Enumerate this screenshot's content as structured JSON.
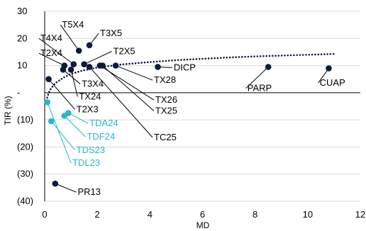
{
  "chart_data": {
    "type": "scatter",
    "title": "",
    "xlabel": "MD",
    "ylabel": "TIR (%)",
    "xlim": [
      0,
      12
    ],
    "ylim": [
      -40,
      30
    ],
    "x_ticks": [
      0,
      2,
      4,
      6,
      8,
      10,
      12
    ],
    "y_ticks": [
      {
        "v": 30,
        "label": "30"
      },
      {
        "v": 20,
        "label": "20"
      },
      {
        "v": 10,
        "label": "10"
      },
      {
        "v": 0,
        "label": "-"
      },
      {
        "v": -10,
        "label": "(10)"
      },
      {
        "v": -20,
        "label": "(20)"
      },
      {
        "v": -30,
        "label": "(30)"
      },
      {
        "v": -40,
        "label": "(40)"
      }
    ],
    "grid": "horizontal",
    "colors": {
      "dark": "#0e1a3d",
      "teal": "#29b6c8",
      "grid": "#d9d9d9",
      "axis": "#000000"
    },
    "series": [
      {
        "color": "#0e1a3d",
        "points": [
          {
            "label": "T5X4",
            "x": 1.3,
            "y": 15.5,
            "lx": 0.6,
            "ly": 24.0
          },
          {
            "label": "T3X5",
            "x": 1.7,
            "y": 17.5,
            "lx": 2.05,
            "ly": 20.8
          },
          {
            "label": "T4X4",
            "x": 1.1,
            "y": 10.5,
            "lx": -0.22,
            "ly": 19.0
          },
          {
            "label": "T2X4",
            "x": 0.75,
            "y": 10.0,
            "lx": -0.22,
            "ly": 13.5
          },
          {
            "label": "T2X5",
            "x": 1.5,
            "y": 10.5,
            "lx": 2.55,
            "ly": 14.2
          },
          {
            "label": "T3X4",
            "x": 0.7,
            "y": 8.5,
            "lx": 1.35,
            "ly": 2.2
          },
          {
            "label": "TX24",
            "x": 1.0,
            "y": 8.5,
            "lx": 1.25,
            "ly": -2.5
          },
          {
            "label": "T2X3",
            "x": 0.15,
            "y": 5.0,
            "lx": 1.15,
            "ly": -7.2
          },
          {
            "label": "TX26",
            "x": 2.1,
            "y": 10.0,
            "lx": 4.15,
            "ly": -3.7
          },
          {
            "label": "TX25",
            "x": 2.2,
            "y": 10.0,
            "lx": 4.15,
            "ly": -7.7
          },
          {
            "label": "TX28",
            "x": 2.7,
            "y": 10.0,
            "lx": 4.1,
            "ly": 3.6
          },
          {
            "label": "DICP",
            "x": 4.3,
            "y": 9.5,
            "lx": 4.85,
            "ly": 8.2
          },
          {
            "label": "TC25",
            "x": 1.7,
            "y": 9.5,
            "lx": 4.1,
            "ly": -17.5
          },
          {
            "label": "PARP",
            "x": 8.5,
            "y": 9.5,
            "lx": 7.65,
            "ly": 0.6
          },
          {
            "label": "CUAP",
            "x": 10.8,
            "y": 9.0,
            "lx": 10.4,
            "ly": 2.6
          },
          {
            "label": "PR13",
            "x": 0.4,
            "y": -33.5,
            "lx": 1.2,
            "ly": -37.7
          }
        ]
      },
      {
        "color": "#29b6c8",
        "points": [
          {
            "label": "TDA24",
            "x": 0.9,
            "y": -7.5,
            "lx": 1.65,
            "ly": -12.3
          },
          {
            "label": "TDF24",
            "x": 0.75,
            "y": -8.5,
            "lx": 1.55,
            "ly": -17.3
          },
          {
            "label": "TDS23",
            "x": 0.25,
            "y": -10.5,
            "lx": 1.15,
            "ly": -22.2
          },
          {
            "label": "TDL23",
            "x": 0.1,
            "y": -3.5,
            "lx": 1.0,
            "ly": -27.0
          }
        ]
      }
    ],
    "trendline": {
      "type": "logarithmic",
      "style": "dotted",
      "points": [
        [
          0.05,
          -4
        ],
        [
          0.1,
          -1.5
        ],
        [
          0.2,
          1
        ],
        [
          0.4,
          3.5
        ],
        [
          0.7,
          5.5
        ],
        [
          1,
          7
        ],
        [
          1.5,
          8.3
        ],
        [
          2,
          9.3
        ],
        [
          3,
          10.5
        ],
        [
          4,
          11.3
        ],
        [
          5,
          12
        ],
        [
          6,
          12.5
        ],
        [
          7,
          13
        ],
        [
          8,
          13.4
        ],
        [
          9,
          13.7
        ],
        [
          10,
          14
        ],
        [
          11,
          14.3
        ]
      ]
    }
  }
}
